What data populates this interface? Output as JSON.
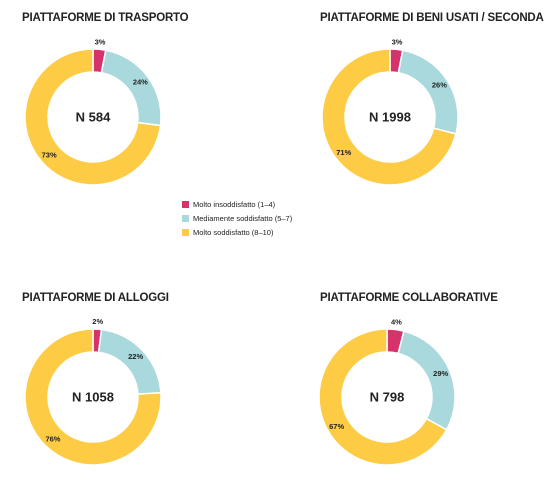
{
  "chart_data": [
    {
      "type": "donut",
      "title": "PIATTAFORME DI TRASPORTO",
      "center_label": "N 584",
      "values": [
        3,
        24,
        73
      ],
      "value_labels": [
        "3%",
        "24%",
        "73%"
      ]
    },
    {
      "type": "donut",
      "title": "PIATTAFORME DI BENI USATI / SECONDA",
      "center_label": "N 1998",
      "values": [
        3,
        26,
        71
      ],
      "value_labels": [
        "3%",
        "26%",
        "71%"
      ]
    },
    {
      "type": "donut",
      "title": "PIATTAFORME DI ALLOGGI",
      "center_label": "N 1058",
      "values": [
        2,
        22,
        76
      ],
      "value_labels": [
        "2%",
        "22%",
        "76%"
      ]
    },
    {
      "type": "donut",
      "title": "PIATTAFORME COLLABORATIVE",
      "center_label": "N 798",
      "values": [
        4,
        29,
        67
      ],
      "value_labels": [
        "4%",
        "29%",
        "67%"
      ]
    }
  ],
  "legend": {
    "categories": [
      "Molto insoddisfatto (1–4)",
      "Mediamente soddisfatto (5–7)",
      "Molto soddisfatto (8–10)"
    ],
    "colors": [
      "#d6336c",
      "#a9d9dd",
      "#fecb45"
    ]
  }
}
